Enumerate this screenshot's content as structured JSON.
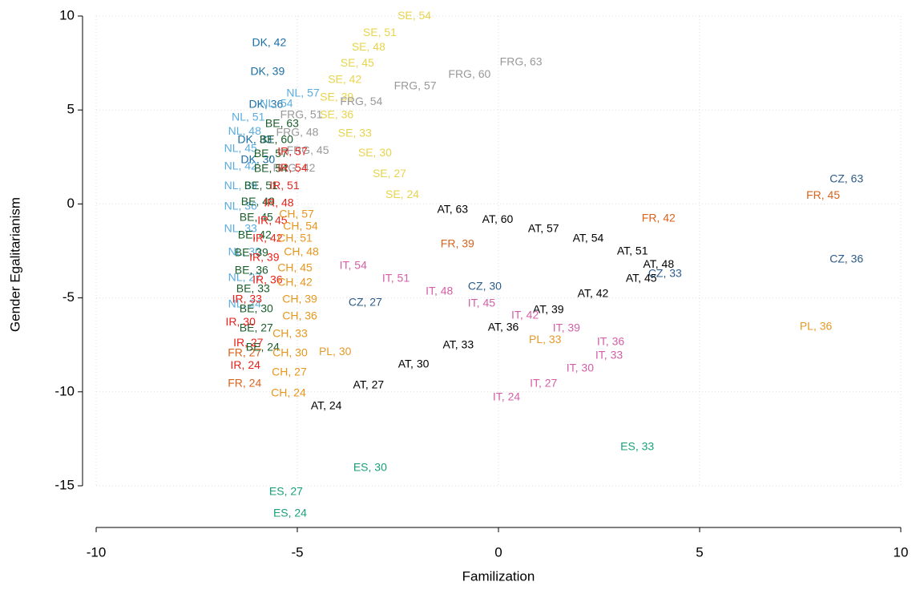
{
  "chart_data": {
    "type": "scatter",
    "xlabel": "Familization",
    "ylabel": "Gender Egalitarianism",
    "xlim": [
      -10,
      10
    ],
    "ylim": [
      -15,
      10
    ],
    "xticks": [
      -10,
      -5,
      0,
      5,
      10
    ],
    "yticks": [
      -15,
      -10,
      -5,
      0,
      5,
      10
    ],
    "grid": true,
    "series": [
      {
        "color": "#000000",
        "labels": [
          "AT, 63",
          "AT, 60",
          "AT, 57",
          "AT, 54",
          "AT, 51",
          "AT, 48",
          "AT, 45",
          "AT, 42",
          "AT, 39",
          "AT, 36",
          "AT, 33",
          "AT, 30",
          "AT, 27",
          "AT, 24"
        ],
        "x": [
          -1.14,
          -0.02,
          1.12,
          2.23,
          3.33,
          3.98,
          3.55,
          2.35,
          1.24,
          0.12,
          -1.0,
          -2.11,
          -3.23,
          -4.28
        ],
        "values": [
          -0.32,
          -0.84,
          -1.35,
          -1.86,
          -2.54,
          -3.23,
          -3.99,
          -4.8,
          -5.65,
          -6.59,
          -7.53,
          -8.55,
          -9.66,
          -10.77
        ]
      },
      {
        "color": "#2e5c8a",
        "labels": [
          "CZ, 63",
          "CZ, 36",
          "CZ, 33",
          "CZ, 30",
          "CZ, 27"
        ],
        "x": [
          8.65,
          8.65,
          4.14,
          -0.34,
          -3.31
        ],
        "values": [
          1.3,
          -2.97,
          -3.73,
          -4.41,
          -5.27
        ]
      },
      {
        "color": "#d9621c",
        "labels": [
          "FR, 45",
          "FR, 42",
          "FR, 39",
          "FR, 27",
          "FR, 24"
        ],
        "x": [
          8.07,
          3.98,
          -1.02,
          -6.31,
          -6.31
        ],
        "values": [
          0.44,
          -0.79,
          -2.15,
          -7.96,
          -9.58
        ]
      },
      {
        "color": "#e59a2a",
        "labels": [
          "PL, 36",
          "PL, 33",
          "PL, 30"
        ],
        "x": [
          7.89,
          1.16,
          -4.06
        ],
        "values": [
          -6.55,
          -7.24,
          -7.88
        ]
      },
      {
        "color": "#d45fa6",
        "labels": [
          "IT, 54",
          "IT, 51",
          "IT, 48",
          "IT, 45",
          "IT, 42",
          "IT, 39",
          "IT, 36",
          "IT, 33",
          "IT, 30",
          "IT, 27",
          "IT, 24"
        ],
        "x": [
          -3.61,
          -2.55,
          -1.47,
          -0.42,
          0.66,
          1.69,
          2.79,
          2.75,
          2.03,
          1.12,
          0.2
        ],
        "values": [
          -3.31,
          -3.99,
          -4.67,
          -5.31,
          -5.95,
          -6.63,
          -7.36,
          -8.08,
          -8.77,
          -9.58,
          -10.3
        ]
      },
      {
        "color": "#1aa07a",
        "labels": [
          "ES, 33",
          "ES, 30",
          "ES, 27",
          "ES, 24"
        ],
        "x": [
          3.45,
          -3.19,
          -5.28,
          -5.18
        ],
        "values": [
          -12.95,
          -14.06,
          -15.34,
          -16.49
        ]
      },
      {
        "color": "#e8d44d",
        "labels": [
          "SE, 54",
          "SE, 51",
          "SE, 48",
          "SE, 45",
          "SE, 42",
          "SE, 39",
          "SE, 36",
          "SE, 33",
          "SE, 30",
          "SE, 27",
          "SE, 24"
        ],
        "x": [
          -2.09,
          -2.95,
          -3.23,
          -3.51,
          -3.82,
          -4.02,
          -4.02,
          -3.57,
          -3.07,
          -2.71,
          -2.39
        ],
        "values": [
          9.99,
          9.1,
          8.33,
          7.48,
          6.59,
          5.65,
          4.71,
          3.73,
          2.7,
          1.59,
          0.48
        ]
      },
      {
        "color": "#999999",
        "labels": [
          "FRG, 63",
          "FRG, 60",
          "FRG, 57",
          "FRG, 54",
          "FRG, 51",
          "FRG, 48",
          "FRG, 45",
          "FRG, 42"
        ],
        "x": [
          0.56,
          -0.72,
          -2.07,
          -3.41,
          -4.9,
          -5.0,
          -4.74,
          -5.08
        ],
        "values": [
          7.53,
          6.88,
          6.25,
          5.43,
          4.71,
          3.77,
          2.83,
          1.89
        ]
      },
      {
        "color": "#1a6fa8",
        "labels": [
          "DK, 42",
          "DK, 39",
          "DK, 36",
          "DK, 33",
          "DK, 30"
        ],
        "x": [
          -5.7,
          -5.74,
          -5.78,
          -6.06,
          -5.98
        ],
        "values": [
          8.55,
          7.02,
          5.27,
          3.39,
          2.33
        ]
      },
      {
        "color": "#5aacde",
        "labels": [
          "NL, 57",
          "NL, 54",
          "NL, 51",
          "NL, 48",
          "NL, 45",
          "NL, 42",
          "NL, 39",
          "NL, 36",
          "NL, 33",
          "NL, 30",
          "NL, 27",
          "NL, 24"
        ],
        "x": [
          -4.86,
          -5.52,
          -6.22,
          -6.31,
          -6.41,
          -6.41,
          -6.41,
          -6.41,
          -6.41,
          -6.31,
          -6.31,
          -6.31
        ],
        "values": [
          5.86,
          5.31,
          4.58,
          3.85,
          2.92,
          1.98,
          0.95,
          -0.15,
          -1.35,
          -2.58,
          -3.94,
          -5.36
        ]
      },
      {
        "color": "#1a5e2a",
        "labels": [
          "BE, 63",
          "BE, 60",
          "BE, 57",
          "BE, 54",
          "BE, 51",
          "BE, 48",
          "BE, 45",
          "BE, 42",
          "BE, 39",
          "BE, 36",
          "BE, 33",
          "BE, 30",
          "BE, 27",
          "BE, 24"
        ],
        "x": [
          -5.38,
          -5.52,
          -5.66,
          -5.66,
          -5.9,
          -5.98,
          -6.02,
          -6.06,
          -6.14,
          -6.14,
          -6.1,
          -6.02,
          -6.02,
          -5.86
        ],
        "values": [
          4.24,
          3.39,
          2.66,
          1.85,
          0.95,
          0.1,
          -0.75,
          -1.69,
          -2.62,
          -3.56,
          -4.54,
          -5.61,
          -6.63,
          -7.66
        ]
      },
      {
        "color": "#e8221c",
        "labels": [
          "IR, 57",
          "IR, 54",
          "IR, 51",
          "IR, 48",
          "IR, 45",
          "IR, 42",
          "IR, 39",
          "IR, 36",
          "IR, 33",
          "IR, 30",
          "IR, 27",
          "IR, 24"
        ],
        "x": [
          -5.12,
          -5.12,
          -5.32,
          -5.46,
          -5.62,
          -5.74,
          -5.82,
          -5.74,
          -6.25,
          -6.41,
          -6.22,
          -6.29
        ],
        "values": [
          2.75,
          1.89,
          0.95,
          0.02,
          -0.92,
          -1.86,
          -2.88,
          -4.07,
          -5.1,
          -6.3,
          -7.41,
          -8.61
        ]
      },
      {
        "color": "#e8961c",
        "labels": [
          "CH, 57",
          "CH, 54",
          "CH, 51",
          "CH, 48",
          "CH, 45",
          "CH, 42",
          "CH, 39",
          "CH, 36",
          "CH, 33",
          "CH, 30",
          "CH, 27",
          "CH, 24"
        ],
        "x": [
          -5.02,
          -4.92,
          -5.06,
          -4.9,
          -5.06,
          -5.06,
          -4.94,
          -4.94,
          -5.18,
          -5.18,
          -5.2,
          -5.22
        ],
        "values": [
          -0.58,
          -1.22,
          -1.86,
          -2.58,
          -3.43,
          -4.2,
          -5.1,
          -5.99,
          -6.93,
          -7.96,
          -8.98,
          -10.09
        ]
      }
    ]
  }
}
